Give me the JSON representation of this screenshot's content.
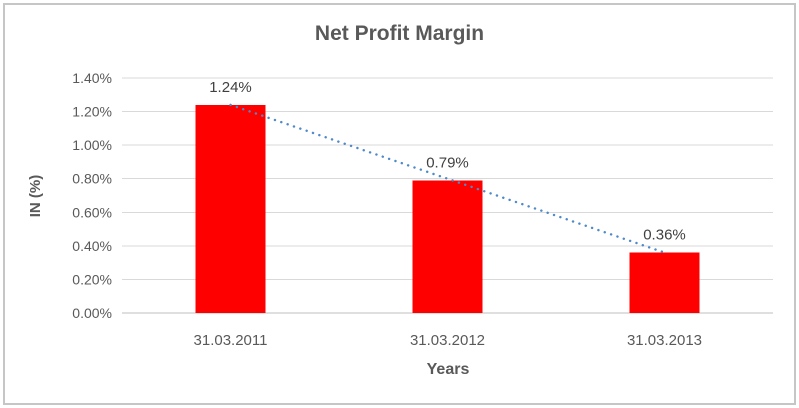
{
  "chart_data": {
    "type": "bar",
    "title": "Net Profit Margin",
    "categories": [
      "31.03.2011",
      "31.03.2012",
      "31.03.2013"
    ],
    "values": [
      1.24,
      0.79,
      0.36
    ],
    "data_labels": [
      "1.24%",
      "0.79%",
      "0.36%"
    ],
    "xlabel": "Years",
    "ylabel": "IN (%)",
    "ylim": [
      0,
      1.4
    ],
    "ytick_step": 0.2,
    "ytick_labels": [
      "0.00%",
      "0.20%",
      "0.40%",
      "0.60%",
      "0.80%",
      "1.00%",
      "1.20%",
      "1.40%"
    ],
    "grid": true,
    "legend": "none",
    "bar_color": "#ff0000",
    "trendline": {
      "type": "linear",
      "style": "dotted",
      "color": "#4e8ac9"
    },
    "colors": {
      "gridline": "#d9d9d9",
      "axis_line": "#bfbfbf",
      "tick_text": "#595959",
      "title_text": "#595959",
      "data_label_text": "#404040"
    }
  }
}
